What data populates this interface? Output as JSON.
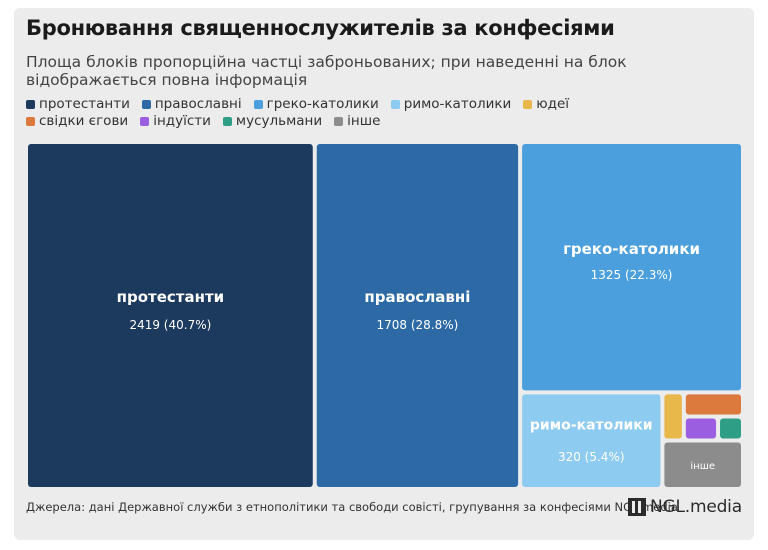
{
  "header": {
    "title": "Бронювання священнослужителів за конфесіями",
    "subtitle": "Площа блоків пропорційна частці заброньованих; при наведенні на блок відображається повна інформація"
  },
  "footer": {
    "source": "Джерела: дані Державної служби з етнополітики та свободи совісті, групування за конфесіями NGL.media",
    "brand": "NGL.media"
  },
  "chart_data": {
    "type": "treemap",
    "title": "Бронювання священнослужителів за конфесіями",
    "legend_position": "top-left",
    "series": [
      {
        "name": "протестанти",
        "value": 2419,
        "percent_label": "40.7%",
        "color": "#1c3a5e"
      },
      {
        "name": "православні",
        "value": 1708,
        "percent_label": "28.8%",
        "color": "#2d6aa5"
      },
      {
        "name": "греко-католики",
        "value": 1325,
        "percent_label": "22.3%",
        "color": "#4a9fdc"
      },
      {
        "name": "римо-католики",
        "value": 320,
        "percent_label": "5.4%",
        "color": "#8ecbf0"
      },
      {
        "name": "юдеї",
        "color": "#e9b84a"
      },
      {
        "name": "свідки єгови",
        "color": "#dc7a3e"
      },
      {
        "name": "індуїсти",
        "color": "#9b5ee0"
      },
      {
        "name": "мусульмани",
        "color": "#2e9e86"
      },
      {
        "name": "інше",
        "color": "#8c8c8c"
      }
    ]
  }
}
